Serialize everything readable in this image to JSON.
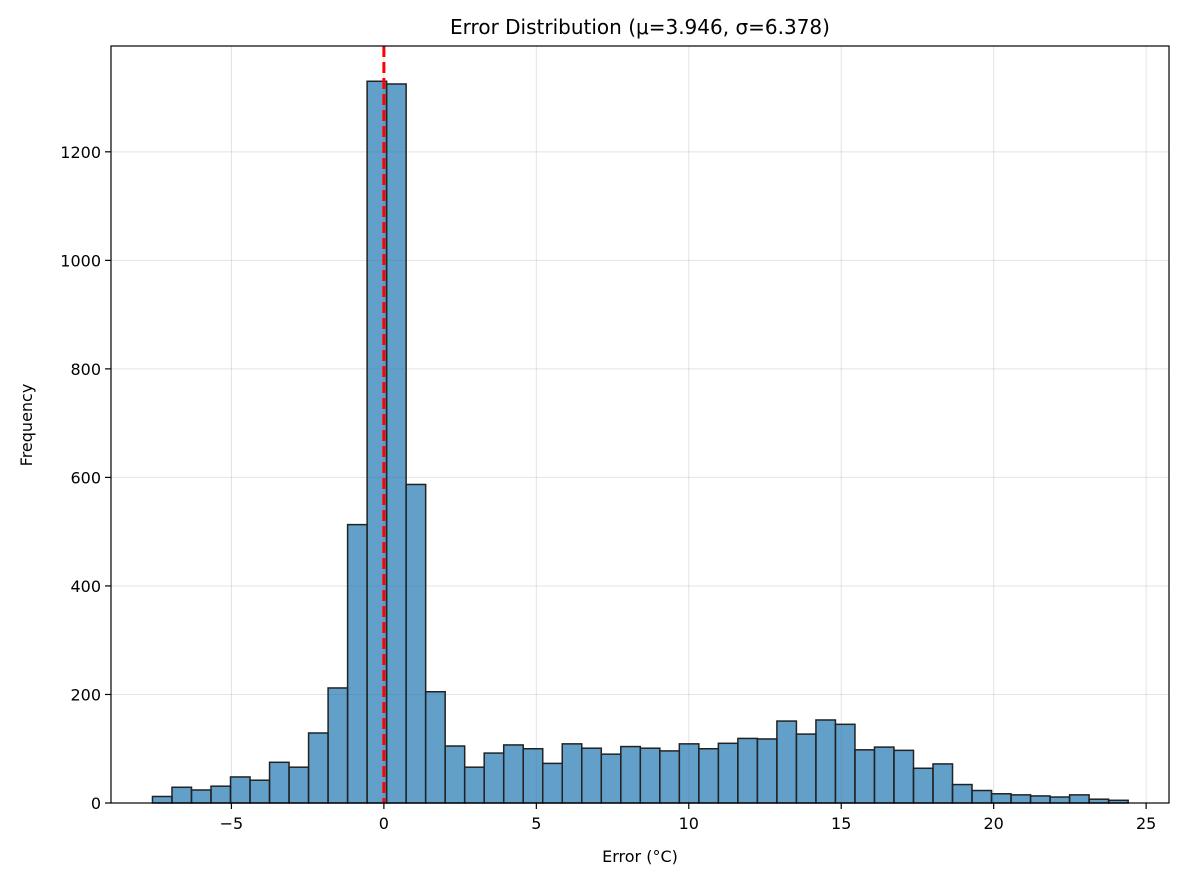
{
  "chart_data": {
    "type": "bar",
    "title": "Error Distribution (μ=3.946, σ=6.378)",
    "xlabel": "Error (°C)",
    "ylabel": "Frequency",
    "xlim": [
      -8.95,
      25.75
    ],
    "ylim": [
      0,
      1395
    ],
    "xticks": [
      -5,
      0,
      5,
      10,
      15,
      20,
      25
    ],
    "xtick_labels": [
      "−5",
      "0",
      "5",
      "10",
      "15",
      "20",
      "25"
    ],
    "yticks": [
      0,
      200,
      400,
      600,
      800,
      1000,
      1200
    ],
    "ytick_labels": [
      "0",
      "200",
      "400",
      "600",
      "800",
      "1000",
      "1200"
    ],
    "grid": true,
    "bar_color": "#1f77b4",
    "bar_edge_color": "#222222",
    "reference_line": {
      "x": 0,
      "color": "#ff0000",
      "style": "dashed"
    },
    "bin_edges": [
      -7.59,
      -6.95,
      -6.31,
      -5.67,
      -5.03,
      -4.39,
      -3.75,
      -3.11,
      -2.47,
      -1.83,
      -1.19,
      -0.55,
      0.09,
      0.73,
      1.37,
      2.01,
      2.65,
      3.29,
      3.93,
      4.57,
      5.21,
      5.85,
      6.49,
      7.13,
      7.77,
      8.41,
      9.05,
      9.69,
      10.33,
      10.97,
      11.61,
      12.25,
      12.89,
      13.53,
      14.17,
      14.81,
      15.45,
      16.09,
      16.73,
      17.37,
      18.01,
      18.65,
      19.29,
      19.93,
      20.57,
      21.21,
      21.85,
      22.49,
      23.13,
      23.77,
      24.41
    ],
    "values": [
      12,
      29,
      24,
      31,
      48,
      42,
      75,
      66,
      129,
      212,
      513,
      1330,
      1325,
      587,
      205,
      105,
      66,
      92,
      107,
      100,
      73,
      109,
      101,
      90,
      104,
      101,
      96,
      109,
      100,
      110,
      119,
      118,
      151,
      127,
      153,
      145,
      98,
      103,
      97,
      64,
      72,
      34,
      23,
      17,
      15,
      13,
      11,
      15,
      7,
      5
    ]
  }
}
